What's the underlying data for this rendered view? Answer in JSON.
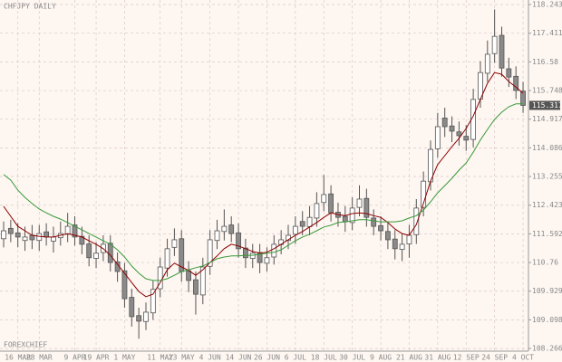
{
  "chart_data": {
    "type": "candlestick",
    "title": "CHFJPY DAILY",
    "watermark": "FOREXCHIEF",
    "categories": [
      null,
      null,
      "16 MAR",
      null,
      null,
      "28 MAR",
      null,
      null,
      null,
      null,
      "9 APR",
      null,
      null,
      "19 APR",
      null,
      null,
      null,
      "1 MAY",
      null,
      null,
      null,
      null,
      "11 MAY",
      null,
      null,
      "23 MAY",
      null,
      null,
      null,
      "4 JUN",
      null,
      null,
      null,
      "14 JUN",
      null,
      null,
      null,
      "26 JUN",
      null,
      null,
      null,
      "6 JUL",
      null,
      null,
      null,
      "18 JUL",
      null,
      null,
      null,
      "30 JUL",
      null,
      null,
      null,
      "9 AUG",
      null,
      null,
      null,
      "21 AUG",
      null,
      null,
      null,
      "31 AUG",
      null,
      null,
      null,
      "12 SEP",
      null,
      null,
      null,
      "24 SEP",
      null,
      null,
      null,
      "4 OCT"
    ],
    "open": [
      111.45,
      111.75,
      111.62,
      111.4,
      111.55,
      111.4,
      111.65,
      111.38,
      111.48,
      111.58,
      111.85,
      111.52,
      111.3,
      110.88,
      111.05,
      111.32,
      110.78,
      110.52,
      109.75,
      109.22,
      109.05,
      109.3,
      110.0,
      110.6,
      111.2,
      111.45,
      110.52,
      110.26,
      109.82,
      110.65,
      111.4,
      111.66,
      111.85,
      111.62,
      111.18,
      110.88,
      111.05,
      110.74,
      110.92,
      111.28,
      111.4,
      111.58,
      111.95,
      111.8,
      112.05,
      112.5,
      112.75,
      112.22,
      112.1,
      111.92,
      112.36,
      112.62,
      112.05,
      111.83,
      111.66,
      111.44,
      111.14,
      111.3,
      111.57,
      112.36,
      113.1,
      114.06,
      114.95,
      114.72,
      114.55,
      114.42,
      114.33,
      115.5,
      116.25,
      116.82,
      117.35,
      116.38,
      116.16,
      115.73
    ],
    "high": [
      111.95,
      112.0,
      111.9,
      111.8,
      111.85,
      111.85,
      111.9,
      111.8,
      111.95,
      112.2,
      112.1,
      111.8,
      111.55,
      111.35,
      111.55,
      111.55,
      111.05,
      110.75,
      110.0,
      109.45,
      109.6,
      110.25,
      110.9,
      111.45,
      111.75,
      111.7,
      110.8,
      110.5,
      110.9,
      111.7,
      112.0,
      112.3,
      112.1,
      111.9,
      111.45,
      111.3,
      111.3,
      111.2,
      111.55,
      111.7,
      111.85,
      112.1,
      112.25,
      112.4,
      112.8,
      113.3,
      113.0,
      112.5,
      112.4,
      112.65,
      113.0,
      112.9,
      112.3,
      112.1,
      111.95,
      111.7,
      111.6,
      111.85,
      112.6,
      113.4,
      114.3,
      115.1,
      115.25,
      115.0,
      114.85,
      114.75,
      115.8,
      116.6,
      117.2,
      118.1,
      117.6,
      116.7,
      116.45,
      116.0
    ],
    "low": [
      111.2,
      111.35,
      111.2,
      111.1,
      111.15,
      111.1,
      111.25,
      111.05,
      111.25,
      111.35,
      111.25,
      111.0,
      110.65,
      110.6,
      110.8,
      110.5,
      110.2,
      109.45,
      108.9,
      108.55,
      108.8,
      109.1,
      109.75,
      110.35,
      110.95,
      110.2,
      109.9,
      109.25,
      109.55,
      110.4,
      111.15,
      111.4,
      111.35,
      110.9,
      110.6,
      110.6,
      110.45,
      110.5,
      110.7,
      111.0,
      111.15,
      111.3,
      111.55,
      111.55,
      111.8,
      112.25,
      111.95,
      111.8,
      111.65,
      111.7,
      112.1,
      111.8,
      111.55,
      111.4,
      111.15,
      110.85,
      110.8,
      110.9,
      111.3,
      112.1,
      112.85,
      113.8,
      114.4,
      114.25,
      114.15,
      114.0,
      114.1,
      115.25,
      116.0,
      116.55,
      116.15,
      115.85,
      115.5,
      115.1
    ],
    "close": [
      111.68,
      111.6,
      111.5,
      111.5,
      111.42,
      111.6,
      111.5,
      111.5,
      111.6,
      111.81,
      111.5,
      111.29,
      110.9,
      111.03,
      111.29,
      110.76,
      110.5,
      109.71,
      109.19,
      109.06,
      109.32,
      109.98,
      110.63,
      111.16,
      111.42,
      110.5,
      110.24,
      109.84,
      110.63,
      111.42,
      111.68,
      111.81,
      111.6,
      111.16,
      110.9,
      111.03,
      110.76,
      110.9,
      111.29,
      111.42,
      111.55,
      111.81,
      111.81,
      112.07,
      112.47,
      112.73,
      112.2,
      112.07,
      111.94,
      112.34,
      112.6,
      112.07,
      111.81,
      111.68,
      111.42,
      111.16,
      111.29,
      111.55,
      112.34,
      113.12,
      114.04,
      114.7,
      114.7,
      114.57,
      114.44,
      114.31,
      115.49,
      116.27,
      116.8,
      117.32,
      116.4,
      116.14,
      115.75,
      115.317
    ],
    "up_color": "#ffffff",
    "down_color": "#8a8a8a",
    "candle_stroke": "#555555",
    "series": [
      {
        "color": "#8b0000",
        "values": [
          112.39,
          112.1,
          111.81,
          111.68,
          111.55,
          111.52,
          111.5,
          111.5,
          111.55,
          111.6,
          111.55,
          111.5,
          111.39,
          111.29,
          111.16,
          110.97,
          110.71,
          110.45,
          110.18,
          109.92,
          109.77,
          109.84,
          110.18,
          110.55,
          110.74,
          110.63,
          110.53,
          110.39,
          110.55,
          110.76,
          110.95,
          111.16,
          111.29,
          111.24,
          111.16,
          111.08,
          111.03,
          111.06,
          111.16,
          111.29,
          111.42,
          111.55,
          111.66,
          111.79,
          111.92,
          112.07,
          112.2,
          112.15,
          112.12,
          112.18,
          112.2,
          112.18,
          112.12,
          112.07,
          111.92,
          111.73,
          111.6,
          111.55,
          111.86,
          112.47,
          113.12,
          113.6,
          113.86,
          114.12,
          114.36,
          114.65,
          115.01,
          115.49,
          115.96,
          116.27,
          116.22,
          116.01,
          115.85,
          115.67
        ]
      },
      {
        "color": "#3a9a3a",
        "values": [
          113.31,
          113.15,
          112.86,
          112.65,
          112.47,
          112.31,
          112.2,
          112.1,
          112.02,
          111.92,
          111.81,
          111.71,
          111.6,
          111.5,
          111.39,
          111.29,
          111.13,
          110.92,
          110.66,
          110.45,
          110.29,
          110.24,
          110.24,
          110.29,
          110.39,
          110.5,
          110.55,
          110.61,
          110.66,
          110.76,
          110.87,
          110.92,
          110.95,
          110.95,
          110.97,
          110.97,
          111.0,
          111.03,
          111.06,
          111.13,
          111.26,
          111.39,
          111.5,
          111.58,
          111.68,
          111.79,
          111.84,
          111.92,
          111.94,
          111.97,
          112.0,
          112.0,
          111.97,
          111.94,
          111.94,
          111.94,
          111.97,
          112.05,
          112.12,
          112.28,
          112.52,
          112.78,
          112.99,
          113.2,
          113.44,
          113.65,
          113.96,
          114.31,
          114.62,
          114.91,
          115.12,
          115.28,
          115.36,
          115.36
        ]
      }
    ],
    "ylim": [
      108.19,
      118.374
    ],
    "yticks": [
      118.243,
      117.411,
      116.58,
      115.748,
      114.917,
      114.086,
      113.255,
      112.423,
      111.592,
      110.76,
      109.929,
      109.098,
      108.266
    ],
    "grid": true
  }
}
